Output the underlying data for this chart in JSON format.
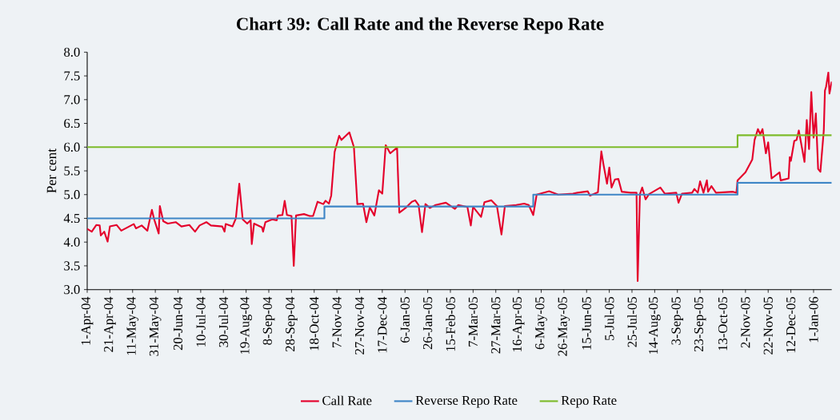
{
  "chart_data": {
    "type": "line",
    "title": "Chart 39: Call Rate and the Reverse Repo Rate",
    "ylabel": "Per cent",
    "xlim": [
      "2004-04-01",
      "2006-01-17"
    ],
    "ylim": [
      3,
      8
    ],
    "yticks": [
      {
        "value": 3,
        "label": "3.0"
      },
      {
        "value": 3.5,
        "label": "3.5"
      },
      {
        "value": 4,
        "label": "4.0"
      },
      {
        "value": 4.5,
        "label": "4.5"
      },
      {
        "value": 5,
        "label": "5.0"
      },
      {
        "value": 5.5,
        "label": "5.5"
      },
      {
        "value": 6,
        "label": "6.0"
      },
      {
        "value": 6.5,
        "label": "6.5"
      },
      {
        "value": 7,
        "label": "7.0"
      },
      {
        "value": 7.5,
        "label": "7.5"
      },
      {
        "value": 8,
        "label": "8.0"
      }
    ],
    "xticks": [
      {
        "value": "2004-04-01",
        "label": "1-Apr-04"
      },
      {
        "value": "2004-04-21",
        "label": "21-Apr-04"
      },
      {
        "value": "2004-05-11",
        "label": "11-May-04"
      },
      {
        "value": "2004-05-31",
        "label": "31-May-04"
      },
      {
        "value": "2004-06-20",
        "label": "20-Jun-04"
      },
      {
        "value": "2004-07-10",
        "label": "10-Jul-04"
      },
      {
        "value": "2004-07-30",
        "label": "30-Jul-04"
      },
      {
        "value": "2004-08-19",
        "label": "19-Aug-04"
      },
      {
        "value": "2004-09-08",
        "label": "8-Sep-04"
      },
      {
        "value": "2004-09-28",
        "label": "28-Sep-04"
      },
      {
        "value": "2004-10-18",
        "label": "18-Oct-04"
      },
      {
        "value": "2004-11-07",
        "label": "7-Nov-04"
      },
      {
        "value": "2004-11-27",
        "label": "27-Nov-04"
      },
      {
        "value": "2004-12-17",
        "label": "17-Dec-04"
      },
      {
        "value": "2005-01-06",
        "label": "6-Jan-05"
      },
      {
        "value": "2005-01-26",
        "label": "26-Jan-05"
      },
      {
        "value": "2005-02-15",
        "label": "15-Feb-05"
      },
      {
        "value": "2005-03-07",
        "label": "7-Mar-05"
      },
      {
        "value": "2005-03-27",
        "label": "27-Mar-05"
      },
      {
        "value": "2005-04-16",
        "label": "16-Apr-05"
      },
      {
        "value": "2005-05-06",
        "label": "6-May-05"
      },
      {
        "value": "2005-05-26",
        "label": "26-May-05"
      },
      {
        "value": "2005-06-15",
        "label": "15-Jun-05"
      },
      {
        "value": "2005-07-05",
        "label": "5-Jul-05"
      },
      {
        "value": "2005-07-25",
        "label": "25-Jul-05"
      },
      {
        "value": "2005-08-14",
        "label": "14-Aug-05"
      },
      {
        "value": "2005-09-03",
        "label": "3-Sep-05"
      },
      {
        "value": "2005-09-23",
        "label": "23-Sep-05"
      },
      {
        "value": "2005-10-13",
        "label": "13-Oct-05"
      },
      {
        "value": "2005-11-02",
        "label": "2-Nov-05"
      },
      {
        "value": "2005-11-22",
        "label": "22-Nov-05"
      },
      {
        "value": "2005-12-12",
        "label": "12-Dec-05"
      },
      {
        "value": "2006-01-01",
        "label": "1-Jan-06"
      }
    ],
    "legend": "bottom",
    "series": [
      {
        "name": "Call Rate",
        "color": "#e4002b",
        "x": [
          "2004-04-01",
          "2004-04-05",
          "2004-04-09",
          "2004-04-12",
          "2004-04-13",
          "2004-04-16",
          "2004-04-19",
          "2004-04-21",
          "2004-04-27",
          "2004-05-01",
          "2004-05-12",
          "2004-05-14",
          "2004-05-19",
          "2004-05-24",
          "2004-05-28",
          "2004-05-30",
          "2004-06-03",
          "2004-06-04",
          "2004-06-07",
          "2004-06-11",
          "2004-06-18",
          "2004-06-23",
          "2004-06-30",
          "2004-07-05",
          "2004-07-09",
          "2004-07-15",
          "2004-07-19",
          "2004-07-29",
          "2004-07-31",
          "2004-08-01",
          "2004-08-07",
          "2004-08-10",
          "2004-08-13",
          "2004-08-16",
          "2004-08-20",
          "2004-08-23",
          "2004-08-24",
          "2004-08-26",
          "2004-09-02",
          "2004-09-03",
          "2004-09-05",
          "2004-09-11",
          "2004-09-15",
          "2004-09-16",
          "2004-09-20",
          "2004-09-22",
          "2004-09-24",
          "2004-09-28",
          "2004-09-30",
          "2004-10-02",
          "2004-10-09",
          "2004-10-14",
          "2004-10-17",
          "2004-10-21",
          "2004-10-26",
          "2004-10-28",
          "2004-10-31",
          "2004-11-02",
          "2004-11-05",
          "2004-11-09",
          "2004-11-11",
          "2004-11-18",
          "2004-11-22",
          "2004-11-25",
          "2004-11-30",
          "2004-12-03",
          "2004-12-06",
          "2004-12-10",
          "2004-12-14",
          "2004-12-17",
          "2004-12-20",
          "2004-12-24",
          "2004-12-30",
          "2005-01-01",
          "2005-01-07",
          "2005-01-12",
          "2005-01-15",
          "2005-01-18",
          "2005-01-21",
          "2005-01-24",
          "2005-01-28",
          "2005-02-02",
          "2005-02-11",
          "2005-02-19",
          "2005-02-22",
          "2005-03-02",
          "2005-03-05",
          "2005-03-07",
          "2005-03-14",
          "2005-03-17",
          "2005-03-23",
          "2005-03-28",
          "2005-04-01",
          "2005-04-04",
          "2005-04-14",
          "2005-04-21",
          "2005-04-25",
          "2005-04-29",
          "2005-05-02",
          "2005-05-13",
          "2005-05-21",
          "2005-06-03",
          "2005-06-07",
          "2005-06-16",
          "2005-06-18",
          "2005-06-25",
          "2005-06-28",
          "2005-06-30",
          "2005-07-03",
          "2005-07-05",
          "2005-07-07",
          "2005-07-10",
          "2005-07-13",
          "2005-07-16",
          "2005-07-24",
          "2005-07-29",
          "2005-07-30",
          "2005-08-01",
          "2005-08-03",
          "2005-08-06",
          "2005-08-09",
          "2005-08-19",
          "2005-08-23",
          "2005-09-02",
          "2005-09-04",
          "2005-09-07",
          "2005-09-16",
          "2005-09-18",
          "2005-09-21",
          "2005-09-23",
          "2005-09-26",
          "2005-09-29",
          "2005-09-30",
          "2005-10-03",
          "2005-10-07",
          "2005-10-22",
          "2005-10-25",
          "2005-10-26",
          "2005-11-02",
          "2005-11-08",
          "2005-11-10",
          "2005-11-13",
          "2005-11-15",
          "2005-11-17",
          "2005-11-20",
          "2005-11-22",
          "2005-11-25",
          "2005-12-02",
          "2005-12-03",
          "2005-12-10",
          "2005-12-11",
          "2005-12-12",
          "2005-12-15",
          "2005-12-17",
          "2005-12-19",
          "2005-12-24",
          "2005-12-26",
          "2005-12-28",
          "2005-12-30",
          "2006-01-01",
          "2006-01-03",
          "2006-01-05",
          "2006-01-07",
          "2006-01-10",
          "2006-01-11",
          "2006-01-12",
          "2006-01-14",
          "2006-01-15",
          "2006-01-17"
        ],
        "values": [
          4.28,
          4.22,
          4.36,
          4.35,
          4.14,
          4.22,
          4.01,
          4.33,
          4.36,
          4.24,
          4.38,
          4.29,
          4.35,
          4.24,
          4.68,
          4.48,
          4.18,
          4.76,
          4.44,
          4.39,
          4.42,
          4.33,
          4.36,
          4.22,
          4.35,
          4.42,
          4.35,
          4.33,
          4.22,
          4.38,
          4.33,
          4.5,
          5.23,
          4.48,
          4.39,
          4.46,
          3.96,
          4.39,
          4.31,
          4.22,
          4.42,
          4.48,
          4.46,
          4.56,
          4.57,
          4.87,
          4.57,
          4.55,
          3.5,
          4.56,
          4.59,
          4.55,
          4.55,
          4.85,
          4.8,
          4.87,
          4.81,
          4.98,
          5.9,
          6.24,
          6.15,
          6.31,
          6.0,
          4.8,
          4.81,
          4.42,
          4.73,
          4.56,
          5.09,
          5.02,
          6.04,
          5.87,
          5.99,
          4.62,
          4.73,
          4.85,
          4.88,
          4.78,
          4.21,
          4.8,
          4.72,
          4.78,
          4.83,
          4.7,
          4.78,
          4.74,
          4.35,
          4.74,
          4.53,
          4.84,
          4.88,
          4.76,
          4.16,
          4.76,
          4.78,
          4.81,
          4.78,
          4.57,
          5.0,
          5.07,
          5.0,
          5.02,
          5.04,
          5.07,
          4.98,
          5.05,
          5.91,
          5.62,
          5.23,
          5.57,
          5.15,
          5.32,
          5.33,
          5.06,
          5.04,
          5.04,
          3.18,
          5.01,
          5.15,
          4.9,
          5.01,
          5.15,
          5.02,
          5.04,
          4.83,
          5.02,
          5.04,
          5.12,
          5.04,
          5.28,
          5.04,
          5.3,
          5.06,
          5.18,
          5.04,
          5.06,
          5.04,
          5.3,
          5.47,
          5.74,
          6.15,
          6.38,
          6.27,
          6.38,
          5.87,
          6.1,
          5.34,
          5.47,
          5.3,
          5.34,
          5.79,
          5.71,
          6.13,
          6.15,
          6.35,
          5.69,
          6.57,
          5.96,
          7.16,
          6.2,
          6.71,
          5.54,
          5.48,
          6.35,
          7.19,
          7.27,
          7.57,
          7.13,
          7.38
        ]
      },
      {
        "name": "Reverse Repo Rate",
        "type": "step",
        "color": "#3d85c6",
        "x": [
          "2004-04-01",
          "2004-10-27",
          "2005-04-29",
          "2005-10-26",
          "2006-01-17"
        ],
        "values": [
          4.5,
          4.75,
          5.0,
          5.25,
          5.25
        ]
      },
      {
        "name": "Repo Rate",
        "type": "step",
        "color": "#7dbb2a",
        "x": [
          "2004-04-01",
          "2005-10-26",
          "2006-01-17"
        ],
        "values": [
          6.0,
          6.25,
          6.25
        ]
      }
    ]
  }
}
